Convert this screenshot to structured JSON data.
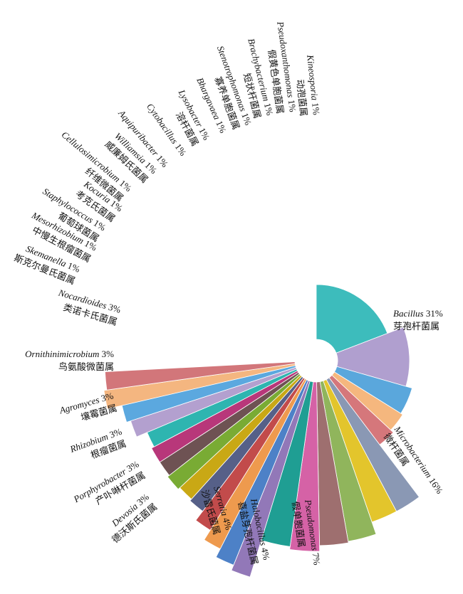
{
  "chart_data": {
    "type": "pie",
    "title": "",
    "slices": [
      {
        "genus": "Bacillus",
        "cn": "芽孢杆菌属",
        "pct_label": "31%",
        "value": 31,
        "color": "#3dbcbc"
      },
      {
        "genus": "Microbacterium",
        "cn": "微杆菌属",
        "pct_label": "16%",
        "value": 16,
        "color": "#b09fcf"
      },
      {
        "genus": "Pseudomonas",
        "cn": "假单胞菌属",
        "pct_label": "7%",
        "value": 7,
        "color": "#5aa7dc"
      },
      {
        "genus": "Halobacillus",
        "cn": "喜盐芽孢杆菌属",
        "pct_label": "4%",
        "value": 4,
        "color": "#f5b77e"
      },
      {
        "genus": "Serratia",
        "cn": "沙雷氏菌属",
        "pct_label": "4%",
        "value": 4,
        "color": "#d5777b"
      },
      {
        "genus": "Devosia",
        "cn": "德沃斯氏菌属",
        "pct_label": "3%",
        "value": 3,
        "color": "#8a98b4"
      },
      {
        "genus": "Porphyrobacter",
        "cn": "产卟啉杆菌属",
        "pct_label": "3%",
        "value": 3,
        "color": "#e3c52c"
      },
      {
        "genus": "Rhizobium",
        "cn": "根瘤菌属",
        "pct_label": "3%",
        "value": 3,
        "color": "#90b55c"
      },
      {
        "genus": "Agromyces",
        "cn": "壤霉菌属",
        "pct_label": "3%",
        "value": 3,
        "color": "#9e6f6f"
      },
      {
        "genus": "Ornithinimicrobium",
        "cn": "鸟氨酸微菌属",
        "pct_label": "3%",
        "value": 3,
        "color": "#d562a6"
      },
      {
        "genus": "Nocardioides",
        "cn": "类诺卡氏菌属",
        "pct_label": "3%",
        "value": 3,
        "color": "#1f9e93"
      },
      {
        "genus": "Skemanella",
        "cn": "斯克尔曼氏菌属",
        "pct_label": "1%",
        "value": 1,
        "color": "#9278b8"
      },
      {
        "genus": "Mesorhizobium",
        "cn": "中慢生根瘤菌属",
        "pct_label": "1%",
        "value": 1,
        "color": "#4d81c7"
      },
      {
        "genus": "Staphylococcus",
        "cn": "葡萄球菌属",
        "pct_label": "1%",
        "value": 1,
        "color": "#ee9a4e"
      },
      {
        "genus": "Kocuria",
        "cn": "考克氏菌属",
        "pct_label": "1%",
        "value": 1,
        "color": "#c24b4b"
      },
      {
        "genus": "Cellulosimicrobium",
        "cn": "纤维微菌属",
        "pct_label": "1%",
        "value": 1,
        "color": "#566088"
      },
      {
        "genus": "Williamsia",
        "cn": "威廉姆氏菌属",
        "pct_label": "1%",
        "value": 1,
        "color": "#c9a815"
      },
      {
        "genus": "Aquipuribacter",
        "cn": "",
        "pct_label": "1%",
        "value": 1,
        "color": "#79ab34"
      },
      {
        "genus": "Cytobacillus",
        "cn": "",
        "pct_label": "1%",
        "value": 1,
        "color": "#6e5253"
      },
      {
        "genus": "Lysobacter",
        "cn": "溶杆菌属",
        "pct_label": "1%",
        "value": 1,
        "color": "#b8377a"
      },
      {
        "genus": "Bhargavaea",
        "cn": "",
        "pct_label": "1%",
        "value": 1,
        "color": "#2eb5b0"
      },
      {
        "genus": "Stenotrophomonas",
        "cn": "寡养单胞菌属",
        "pct_label": "1%",
        "value": 1,
        "color": "#b3a0cf"
      },
      {
        "genus": "Brachybacterium",
        "cn": "短状杆菌属",
        "pct_label": "1%",
        "value": 1,
        "color": "#5ba8df"
      },
      {
        "genus": "Pseudoxanthomonas",
        "cn": "假黄色单胞菌属",
        "pct_label": "1%",
        "value": 1,
        "color": "#f4b680"
      },
      {
        "genus": "Kineosporia",
        "cn": "动孢菌属",
        "pct_label": "1%",
        "value": 1,
        "color": "#d2767a"
      }
    ]
  }
}
